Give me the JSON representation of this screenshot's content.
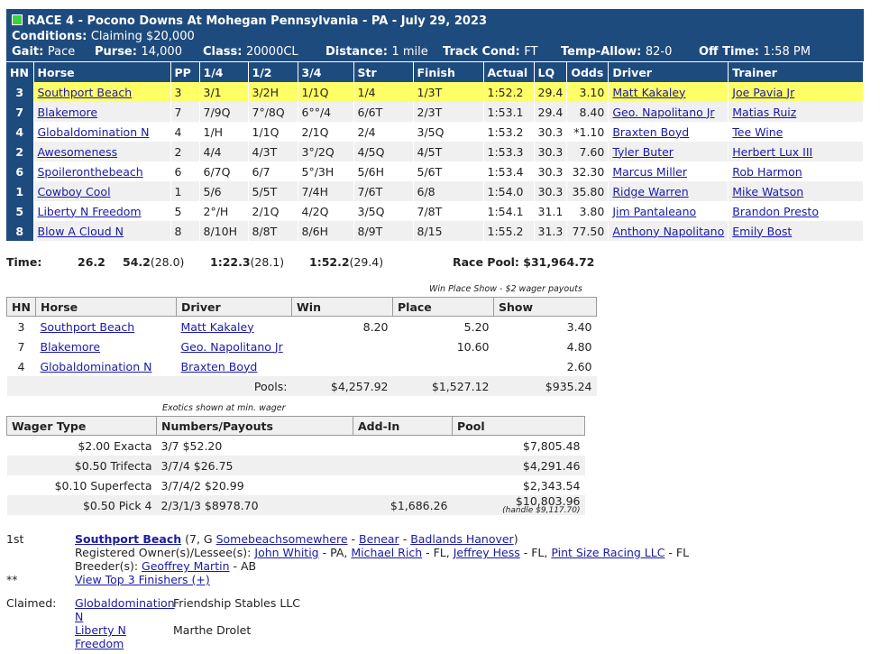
{
  "race": {
    "title": "RACE 4 - Pocono Downs At Mohegan Pennsylvania - PA - July 29, 2023",
    "conditions_label": "Conditions:",
    "conditions": "Claiming $20,000",
    "gait_label": "Gait:",
    "gait": "Pace",
    "purse_label": "Purse:",
    "purse": "14,000",
    "class_label": "Class:",
    "class": "20000CL",
    "distance_label": "Distance:",
    "distance": "1 mile",
    "track_label": "Track Cond:",
    "track": "FT",
    "temp_label": "Temp-Allow:",
    "temp": "82-0",
    "offtime_label": "Off Time:",
    "offtime": "1:58 PM"
  },
  "results": {
    "headers": [
      "HN",
      "Horse",
      "PP",
      "1/4",
      "1/2",
      "3/4",
      "Str",
      "Finish",
      "Actual",
      "LQ",
      "Odds",
      "Driver",
      "Trainer"
    ],
    "rows": [
      {
        "hn": "3",
        "horse": "Southport Beach",
        "pp": "3",
        "q1": "3/1",
        "q2": "3/2H",
        "q3": "1/1Q",
        "str": "1/4",
        "fin": "1/3T",
        "actual": "1:52.2",
        "lq": "29.4",
        "odds": "3.10",
        "driver": "Matt Kakaley",
        "trainer": "Joe Pavia Jr"
      },
      {
        "hn": "7",
        "horse": "Blakemore",
        "pp": "7",
        "q1": "7/9Q",
        "q2": "7°/8Q",
        "q3": "6°°/4",
        "str": "6/6T",
        "fin": "2/3T",
        "actual": "1:53.1",
        "lq": "29.4",
        "odds": "8.40",
        "driver": "Geo. Napolitano Jr",
        "trainer": "Matias Ruiz"
      },
      {
        "hn": "4",
        "horse": "Globaldomination N",
        "pp": "4",
        "q1": "1/H",
        "q2": "1/1Q",
        "q3": "2/1Q",
        "str": "2/4",
        "fin": "3/5Q",
        "actual": "1:53.2",
        "lq": "30.3",
        "odds": "*1.10",
        "driver": "Braxten Boyd",
        "trainer": "Tee Wine"
      },
      {
        "hn": "2",
        "horse": "Awesomeness",
        "pp": "2",
        "q1": "4/4",
        "q2": "4/3T",
        "q3": "3°/2Q",
        "str": "4/5Q",
        "fin": "4/5T",
        "actual": "1:53.3",
        "lq": "30.3",
        "odds": "7.60",
        "driver": "Tyler Buter",
        "trainer": "Herbert Lux III"
      },
      {
        "hn": "6",
        "horse": "Spoileronthebeach",
        "pp": "6",
        "q1": "6/7Q",
        "q2": "6/7",
        "q3": "5°/3H",
        "str": "5/6H",
        "fin": "5/6T",
        "actual": "1:53.4",
        "lq": "30.3",
        "odds": "32.30",
        "driver": "Marcus Miller",
        "trainer": "Rob Harmon"
      },
      {
        "hn": "1",
        "horse": "Cowboy Cool",
        "pp": "1",
        "q1": "5/6",
        "q2": "5/5T",
        "q3": "7/4H",
        "str": "7/6T",
        "fin": "6/8",
        "actual": "1:54.0",
        "lq": "30.3",
        "odds": "35.80",
        "driver": "Ridge Warren",
        "trainer": "Mike Watson"
      },
      {
        "hn": "5",
        "horse": "Liberty N Freedom",
        "pp": "5",
        "q1": "2°/H",
        "q2": "2/1Q",
        "q3": "4/2Q",
        "str": "3/5Q",
        "fin": "7/8T",
        "actual": "1:54.1",
        "lq": "31.1",
        "odds": "3.80",
        "driver": "Jim Pantaleano",
        "trainer": "Brandon Presto"
      },
      {
        "hn": "8",
        "horse": "Blow A Cloud N",
        "pp": "8",
        "q1": "8/10H",
        "q2": "8/8T",
        "q3": "8/6H",
        "str": "8/9T",
        "fin": "8/15",
        "actual": "1:55.2",
        "lq": "31.3",
        "odds": "77.50",
        "driver": "Anthony Napolitano",
        "trainer": "Emily Bost"
      }
    ]
  },
  "times": {
    "label": "Time:",
    "q1": "26.2",
    "q2": "54.2",
    "q2_split": "(28.0)",
    "q3": "1:22.3",
    "q3_split": "(28.1)",
    "final": "1:52.2",
    "final_split": "(29.4)",
    "pool": "Race Pool: $31,964.72"
  },
  "wps": {
    "caption": "Win Place Show - $2 wager payouts",
    "headers": [
      "HN",
      "Horse",
      "Driver",
      "Win",
      "Place",
      "Show"
    ],
    "rows": [
      {
        "hn": "3",
        "horse": "Southport Beach",
        "driver": "Matt Kakaley",
        "win": "8.20",
        "place": "5.20",
        "show": "3.40"
      },
      {
        "hn": "7",
        "horse": "Blakemore",
        "driver": "Geo. Napolitano Jr",
        "win": "",
        "place": "10.60",
        "show": "4.80"
      },
      {
        "hn": "4",
        "horse": "Globaldomination N",
        "driver": "Braxten Boyd",
        "win": "",
        "place": "",
        "show": "2.60"
      }
    ],
    "pools_label": "Pools:",
    "pools_win": "$4,257.92",
    "pools_place": "$1,527.12",
    "pools_show": "$935.24"
  },
  "exotics": {
    "caption": "Exotics shown at min. wager",
    "headers": [
      "Wager Type",
      "Numbers/Payouts",
      "Add-In",
      "Pool"
    ],
    "rows": [
      {
        "type": "$2.00 Exacta",
        "numbers": "3/7 $52.20",
        "addin": "",
        "pool": "$7,805.48",
        "handle": ""
      },
      {
        "type": "$0.50 Trifecta",
        "numbers": "3/7/4 $26.75",
        "addin": "",
        "pool": "$4,291.46",
        "handle": ""
      },
      {
        "type": "$0.10 Superfecta",
        "numbers": "3/7/4/2 $20.99",
        "addin": "",
        "pool": "$2,343.54",
        "handle": ""
      },
      {
        "type": "$0.50 Pick 4",
        "numbers": "2/3/1/3 $8978.70",
        "addin": "$1,686.26",
        "pool": "$10,803.96",
        "handle": "(handle $9,117.70)"
      }
    ]
  },
  "winner": {
    "place": "1st",
    "horse": "Southport Beach",
    "age_sex": "(7, G",
    "sire": "Somebeachsomewhere",
    "dash1": "-",
    "dam": "Benear",
    "dash2": "-",
    "damsire": "Badlands Hanover",
    "close": ")",
    "owner_label": "Registered Owner(s)/Lessee(s):",
    "owners": [
      {
        "name": "John Whitig",
        "loc": "- PA,"
      },
      {
        "name": "Michael Rich",
        "loc": "- FL,"
      },
      {
        "name": "Jeffrey Hess",
        "loc": "- FL,"
      },
      {
        "name": "Pint Size Racing LLC",
        "loc": "- FL"
      }
    ],
    "breeder_label": "Breeder(s):",
    "breeder": "Geoffrey Martin",
    "breeder_loc": "- AB",
    "stars": "**",
    "view_top": "View Top 3 Finishers (+)"
  },
  "claimed": {
    "label": "Claimed:",
    "items": [
      {
        "horse_l1": "Globaldomination",
        "horse_l2": "N",
        "by": "Friendship Stables LLC"
      },
      {
        "horse_l1": "Liberty N",
        "horse_l2": "Freedom",
        "by": "Marthe Drolet"
      }
    ]
  }
}
